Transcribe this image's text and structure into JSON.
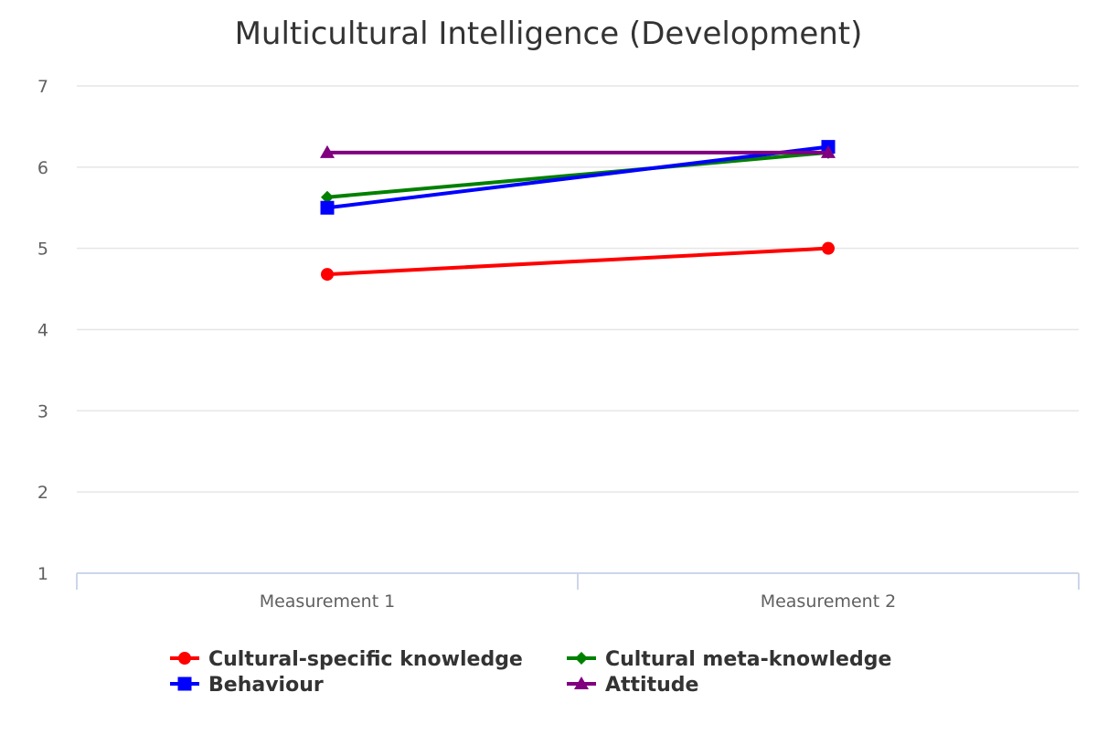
{
  "chart_data": {
    "type": "line",
    "title": "Multicultural Intelligence (Development)",
    "xlabel": "",
    "ylabel": "",
    "categories": [
      "Measurement 1",
      "Measurement 2"
    ],
    "ylim": [
      1,
      7
    ],
    "yticks": [
      1,
      2,
      3,
      4,
      5,
      6,
      7
    ],
    "grid": true,
    "legend_position": "bottom",
    "series": [
      {
        "name": "Cultural-specific knowledge",
        "values": [
          4.68,
          5.0
        ],
        "color": "#ff0000",
        "marker": "circle"
      },
      {
        "name": "Cultural meta-knowledge",
        "values": [
          5.63,
          6.18
        ],
        "color": "#008000",
        "marker": "diamond"
      },
      {
        "name": "Behaviour",
        "values": [
          5.5,
          6.25
        ],
        "color": "#0000ff",
        "marker": "square"
      },
      {
        "name": "Attitude",
        "values": [
          6.18,
          6.18
        ],
        "color": "#800080",
        "marker": "triangle"
      }
    ]
  }
}
